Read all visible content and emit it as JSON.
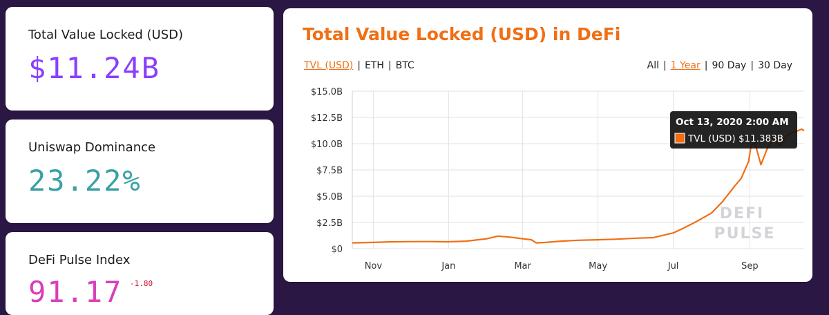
{
  "stats": [
    {
      "label": "Total Value Locked (USD)",
      "value": "$11.24B",
      "color": "#8a3ffc"
    },
    {
      "label": "Uniswap Dominance",
      "value": "23.22%",
      "color": "#3aa0a5"
    },
    {
      "label": "DeFi Pulse Index",
      "value": "91.17",
      "change": "-1.80",
      "color": "#d83fb8"
    }
  ],
  "chart": {
    "title": "Total Value Locked (USD) in DeFi",
    "currency_options": [
      {
        "label": "TVL (USD)",
        "active": true
      },
      {
        "label": "ETH",
        "active": false
      },
      {
        "label": "BTC",
        "active": false
      }
    ],
    "range_options": [
      {
        "label": "All",
        "active": false
      },
      {
        "label": "1 Year",
        "active": true
      },
      {
        "label": "90 Day",
        "active": false
      },
      {
        "label": "30 Day",
        "active": false
      }
    ],
    "watermark_line1": "DEFI",
    "watermark_line2": "PULSE",
    "tooltip": {
      "title": "Oct 13, 2020 2:00 AM",
      "text": "TVL (USD) $11.383B",
      "swatch_color": "#f06f15"
    }
  },
  "chart_data": {
    "type": "line",
    "series": [
      {
        "name": "TVL (USD)",
        "color": "#f06f15",
        "x": [
          "2019-10-15",
          "2019-11-01",
          "2019-11-15",
          "2019-12-01",
          "2019-12-15",
          "2020-01-01",
          "2020-01-15",
          "2020-02-01",
          "2020-02-10",
          "2020-02-20",
          "2020-03-01",
          "2020-03-08",
          "2020-03-12",
          "2020-03-20",
          "2020-04-01",
          "2020-04-15",
          "2020-05-01",
          "2020-05-15",
          "2020-06-01",
          "2020-06-15",
          "2020-06-20",
          "2020-07-01",
          "2020-07-10",
          "2020-07-20",
          "2020-08-01",
          "2020-08-10",
          "2020-08-20",
          "2020-08-25",
          "2020-08-31",
          "2020-09-02",
          "2020-09-05",
          "2020-09-10",
          "2020-09-15",
          "2020-09-20",
          "2020-09-25",
          "2020-10-01",
          "2020-10-07",
          "2020-10-13",
          "2020-10-15"
        ],
        "y": [
          0.55,
          0.6,
          0.65,
          0.67,
          0.68,
          0.66,
          0.72,
          0.95,
          1.2,
          1.1,
          0.95,
          0.85,
          0.55,
          0.6,
          0.72,
          0.8,
          0.85,
          0.9,
          1.0,
          1.05,
          1.2,
          1.5,
          2.0,
          2.6,
          3.4,
          4.5,
          6.0,
          6.7,
          8.3,
          9.8,
          10.1,
          8.0,
          9.5,
          10.5,
          9.8,
          10.8,
          11.1,
          11.38,
          11.24
        ]
      }
    ],
    "x_ticks": [
      "Nov",
      "Jan",
      "Mar",
      "May",
      "Jul",
      "Sep"
    ],
    "y_ticks": [
      "$0",
      "$2.5B",
      "$5.0B",
      "$7.5B",
      "$10.0B",
      "$12.5B",
      "$15.0B"
    ],
    "ylim": [
      0,
      15
    ],
    "xlim": [
      "2019-10-15",
      "2020-10-15"
    ],
    "grid": true,
    "legend": "none"
  }
}
